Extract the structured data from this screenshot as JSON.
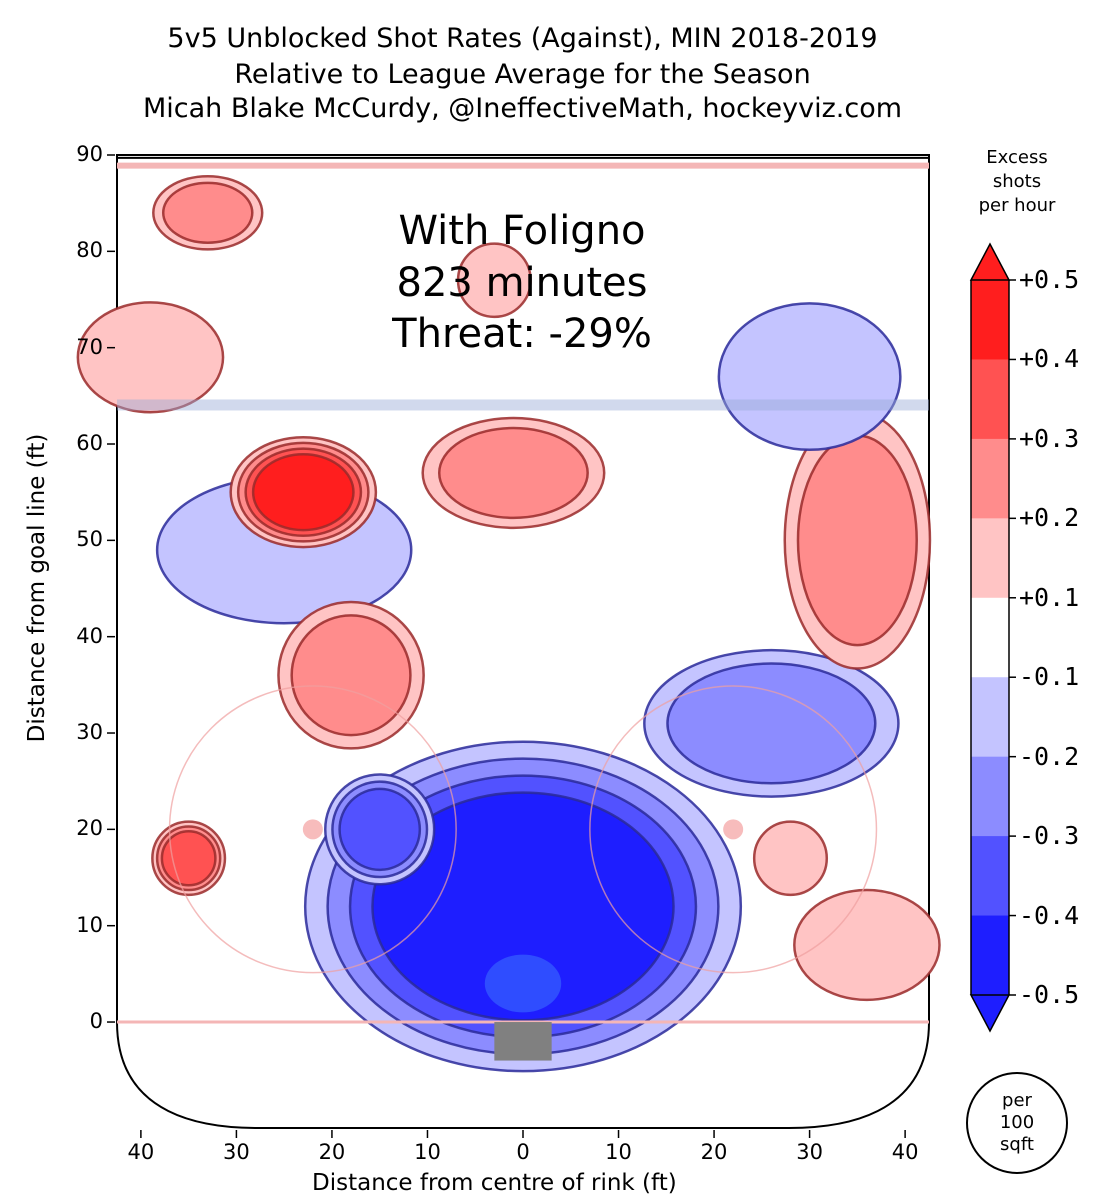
{
  "chart_data": {
    "type": "heatmap",
    "title": [
      "5v5 Unblocked Shot Rates (Against), MIN 2018-2019",
      "Relative to League Average for the Season",
      "Micah Blake McCurdy, @IneffectiveMath, hockeyviz.com"
    ],
    "overlay": [
      "With Foligno",
      "823 minutes",
      "Threat: -29%"
    ],
    "xlabel": "Distance from centre of rink (ft)",
    "ylabel": "Distance from goal line (ft)",
    "xlim": [
      -42.5,
      42.5
    ],
    "ylim": [
      -11,
      90
    ],
    "x_ticks": [
      {
        "v": -40,
        "t": "40"
      },
      {
        "v": -30,
        "t": "30"
      },
      {
        "v": -20,
        "t": "20"
      },
      {
        "v": -10,
        "t": "10"
      },
      {
        "v": 0,
        "t": "0"
      },
      {
        "v": 10,
        "t": "10"
      },
      {
        "v": 20,
        "t": "20"
      },
      {
        "v": 30,
        "t": "30"
      },
      {
        "v": 40,
        "t": "40"
      }
    ],
    "y_ticks": [
      0,
      10,
      20,
      30,
      40,
      50,
      60,
      70,
      80,
      90
    ],
    "colorbar": {
      "title": [
        "Excess",
        "shots",
        "per hour"
      ],
      "levels": [
        "+0.5",
        "+0.4",
        "+0.3",
        "+0.2",
        "+0.1",
        "-0.1",
        "-0.2",
        "-0.3",
        "-0.4",
        "-0.5"
      ],
      "colors": [
        "#ff1e1e",
        "#ff5252",
        "#ff8c8c",
        "#ffc4c4",
        "#ffffff",
        "#c4c4ff",
        "#8c8cff",
        "#5252ff",
        "#1e1eff"
      ],
      "unit": [
        "per",
        "100",
        "sqft"
      ]
    },
    "regions": [
      {
        "sign": "neg",
        "peak": -0.5,
        "cx": 0,
        "cy": 12,
        "rx": 12,
        "ry": 9
      },
      {
        "sign": "neg",
        "peak": -0.4,
        "cx": -15,
        "cy": 20,
        "rx": 3,
        "ry": 3
      },
      {
        "sign": "neg",
        "peak": -0.3,
        "cx": 26,
        "cy": 31,
        "rx": 7,
        "ry": 4
      },
      {
        "sign": "neg",
        "peak": -0.2,
        "cx": -25,
        "cy": 49,
        "rx": 7,
        "ry": 4
      },
      {
        "sign": "pos",
        "peak": 0.5,
        "cx": -23,
        "cy": 55,
        "rx": 4,
        "ry": 3
      },
      {
        "sign": "pos",
        "peak": 0.3,
        "cx": -1,
        "cy": 57,
        "rx": 5,
        "ry": 3
      },
      {
        "sign": "pos",
        "peak": 0.3,
        "cx": 35,
        "cy": 50,
        "rx": 4,
        "ry": 7
      },
      {
        "sign": "pos",
        "peak": 0.3,
        "cx": -18,
        "cy": 36,
        "rx": 4,
        "ry": 4
      },
      {
        "sign": "pos",
        "peak": 0.4,
        "cx": -35,
        "cy": 17,
        "rx": 2,
        "ry": 2
      },
      {
        "sign": "pos",
        "peak": 0.2,
        "cx": 36,
        "cy": 8,
        "rx": 4,
        "ry": 3
      },
      {
        "sign": "pos",
        "peak": 0.3,
        "cx": -33,
        "cy": 84,
        "rx": 3,
        "ry": 2
      },
      {
        "sign": "pos",
        "peak": 0.2,
        "cx": -3,
        "cy": 77,
        "rx": 2,
        "ry": 2
      },
      {
        "sign": "pos",
        "peak": 0.2,
        "cx": -39,
        "cy": 69,
        "rx": 4,
        "ry": 3
      },
      {
        "sign": "pos",
        "peak": 0.2,
        "cx": 28,
        "cy": 17,
        "rx": 2,
        "ry": 2
      },
      {
        "sign": "neg",
        "peak": -0.2,
        "cx": 30,
        "cy": 67,
        "rx": 5,
        "ry": 4
      }
    ]
  }
}
